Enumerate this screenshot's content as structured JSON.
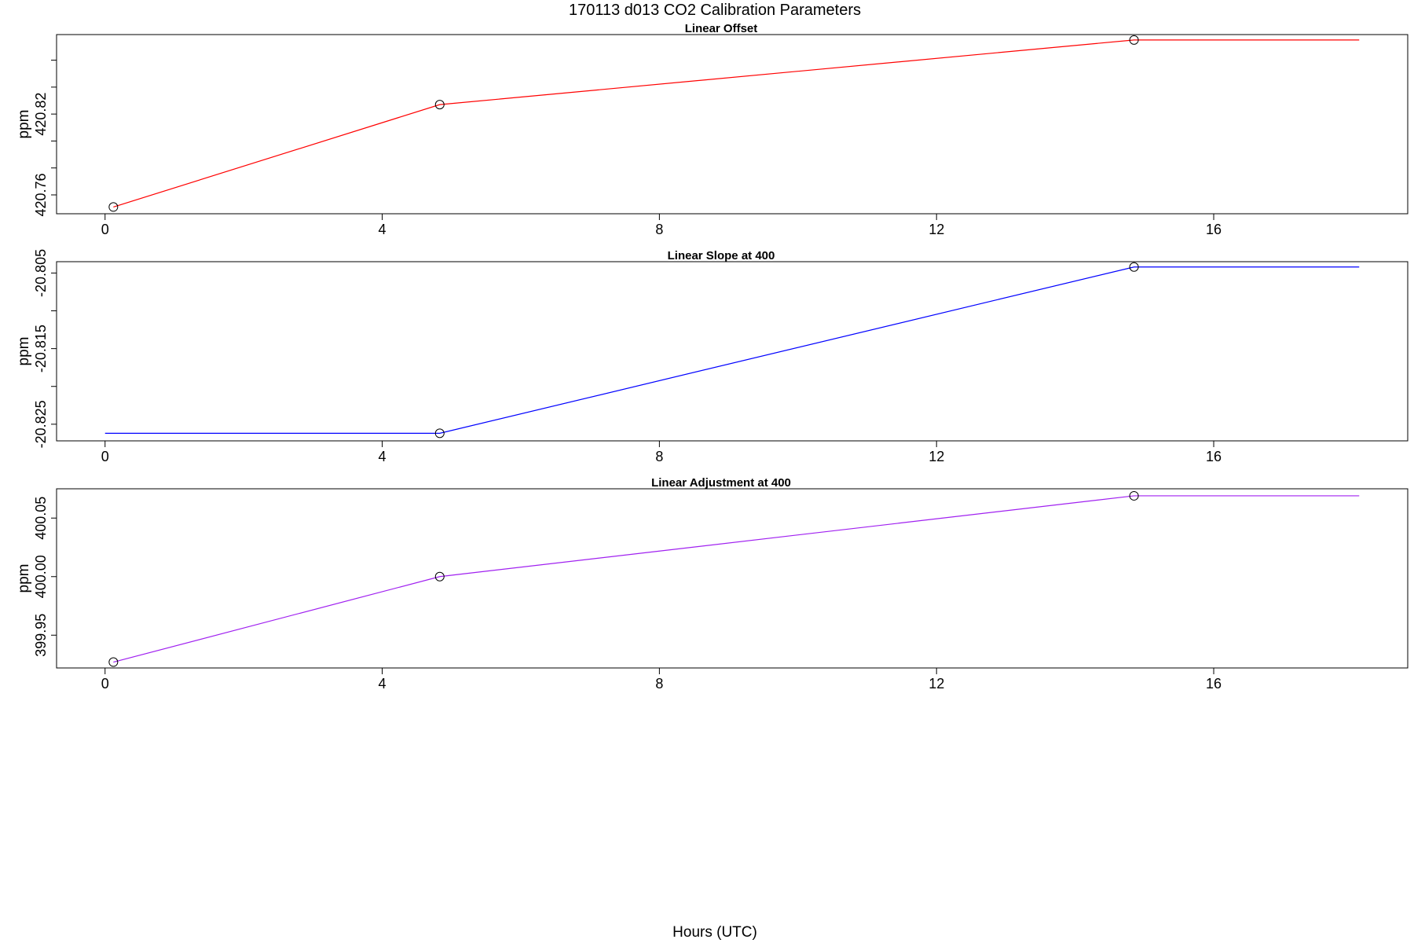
{
  "figure": {
    "title": "170113   d013   CO2 Calibration Parameters",
    "xlabel": "Hours (UTC)"
  },
  "chart_data": [
    {
      "type": "line",
      "title": "Linear Offset",
      "xlabel": "Hours (UTC)",
      "ylabel": "ppm",
      "color": "#ff0000",
      "x": [
        0.12,
        4.83,
        14.85
      ],
      "y": [
        420.751,
        420.827,
        420.875
      ],
      "extend_to_x": 18.1,
      "xlim": [
        -0.7,
        18.8
      ],
      "ylim": [
        420.746,
        420.879
      ],
      "xticks": [
        0,
        4,
        8,
        12,
        16
      ],
      "yticks": [
        420.76,
        420.78,
        420.8,
        420.82,
        420.84,
        420.86
      ],
      "ytick_labels": [
        "420.76",
        "",
        "",
        "420.82",
        "",
        ""
      ],
      "grid": false
    },
    {
      "type": "line",
      "title": "Linear Slope at 400",
      "xlabel": "Hours (UTC)",
      "ylabel": "ppm",
      "color": "#0000ff",
      "x": [
        0,
        4.83,
        14.85
      ],
      "y": [
        -20.8262,
        -20.8262,
        -20.8042
      ],
      "extend_to_x": 18.1,
      "xlim": [
        -0.7,
        18.8
      ],
      "ylim": [
        -20.8272,
        -20.8035
      ],
      "xticks": [
        0,
        4,
        8,
        12,
        16
      ],
      "yticks": [
        -20.825,
        -20.82,
        -20.815,
        -20.81,
        -20.805
      ],
      "ytick_labels": [
        "-20.825",
        "",
        "-20.815",
        "",
        "-20.805"
      ],
      "grid": false
    },
    {
      "type": "line",
      "title": "Linear Adjustment at 400",
      "xlabel": "Hours (UTC)",
      "ylabel": "ppm",
      "color": "#a020f0",
      "x": [
        0.12,
        4.83,
        14.85
      ],
      "y": [
        399.927,
        400.0,
        400.069
      ],
      "extend_to_x": 18.1,
      "xlim": [
        -0.7,
        18.8
      ],
      "ylim": [
        399.922,
        400.075
      ],
      "xticks": [
        0,
        4,
        8,
        12,
        16
      ],
      "yticks": [
        399.95,
        400.0,
        400.05
      ],
      "ytick_labels": [
        "399.95",
        "400.00",
        "400.05"
      ],
      "grid": false
    }
  ]
}
